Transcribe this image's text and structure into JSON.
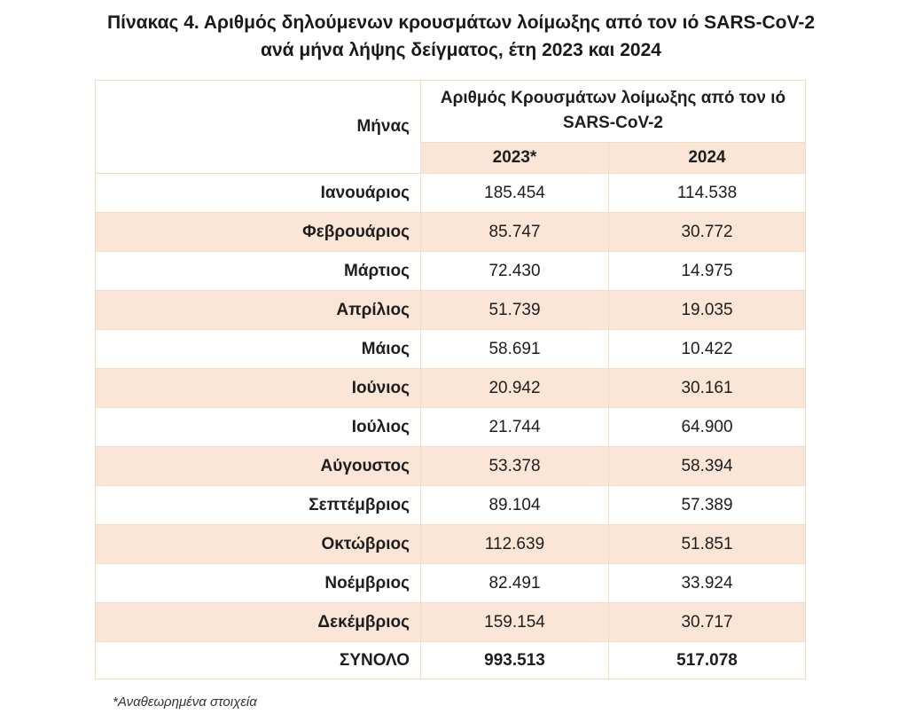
{
  "title": {
    "line1": "Πίνακας 4. Αριθμός δηλούμενων κρουσμάτων λοίμωξης από τον ιό SARS-CoV-2",
    "line2": "ανά μήνα λήψης δείγματος, έτη 2023 και 2024"
  },
  "table": {
    "month_header": "Μήνας",
    "group_header": "Αριθμός Κρουσμάτων λοίμωξης από τον ιό SARS-CoV-2",
    "year1": "2023*",
    "year2": "2024",
    "rows": [
      {
        "month": "Ιανουάριος",
        "v2023": "185.454",
        "v2024": "114.538"
      },
      {
        "month": "Φεβρουάριος",
        "v2023": "85.747",
        "v2024": "30.772"
      },
      {
        "month": "Μάρτιος",
        "v2023": "72.430",
        "v2024": "14.975"
      },
      {
        "month": "Απρίλιος",
        "v2023": "51.739",
        "v2024": "19.035"
      },
      {
        "month": "Μάιος",
        "v2023": "58.691",
        "v2024": "10.422"
      },
      {
        "month": "Ιούνιος",
        "v2023": "20.942",
        "v2024": "30.161"
      },
      {
        "month": "Ιούλιος",
        "v2023": "21.744",
        "v2024": "64.900"
      },
      {
        "month": "Αύγουστος",
        "v2023": "53.378",
        "v2024": "58.394"
      },
      {
        "month": "Σεπτέμβριος",
        "v2023": "89.104",
        "v2024": "57.389"
      },
      {
        "month": "Οκτώβριος",
        "v2023": "112.639",
        "v2024": "51.851"
      },
      {
        "month": "Νοέμβριος",
        "v2023": "82.491",
        "v2024": "33.924"
      },
      {
        "month": "Δεκέμβριος",
        "v2023": "159.154",
        "v2024": "30.717"
      }
    ],
    "total": {
      "label": "ΣΥΝΟΛΟ",
      "v2023": "993.513",
      "v2024": "517.078"
    }
  },
  "footnote": "*Αναθεωρημένα στοιχεία",
  "colors": {
    "shade": "#fbe5d6",
    "border": "#f3dcc4"
  }
}
